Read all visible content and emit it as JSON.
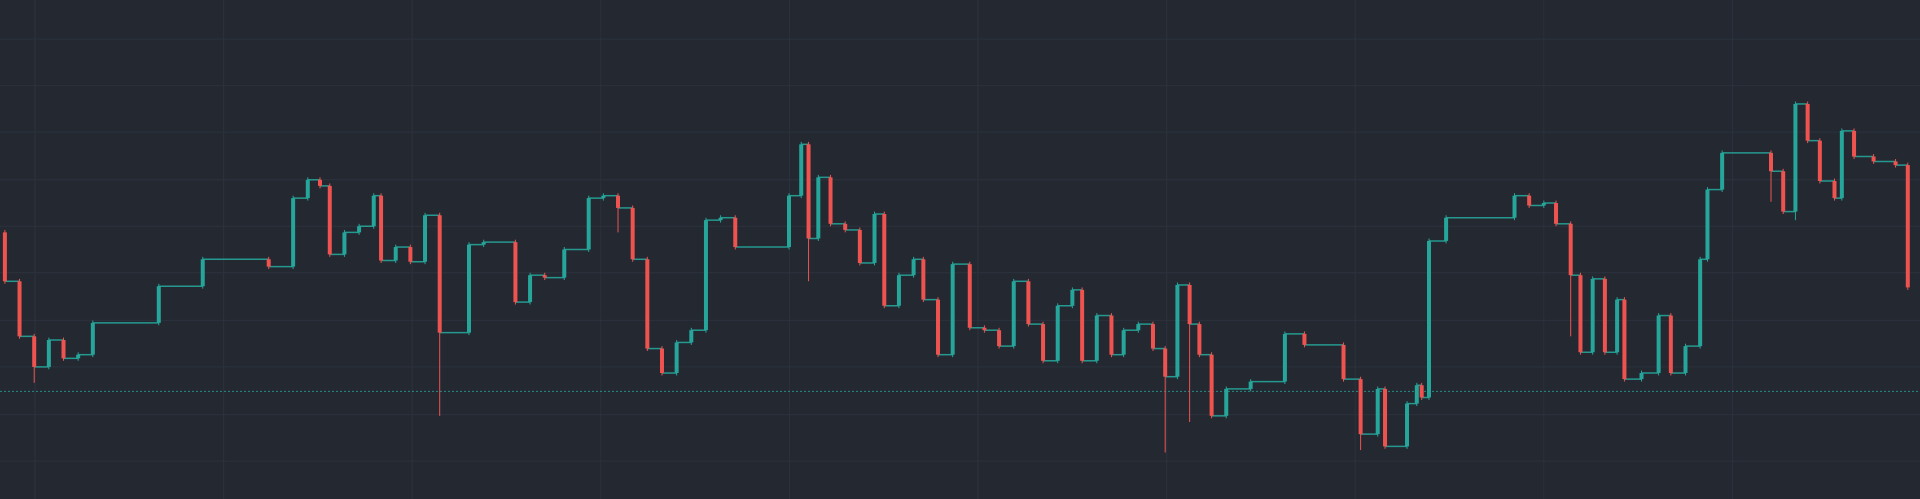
{
  "chart_data": {
    "type": "candlestick",
    "xlim": [
      -4,
      1568
    ],
    "ylim": [
      0,
      408
    ],
    "yticks": [
      31,
      69,
      108,
      146,
      185,
      223,
      261,
      300,
      338,
      376
    ],
    "grid": true,
    "background": "#232831",
    "grid_color": "#2c323d",
    "up_color": "#26a69a",
    "down_color": "#ef5350",
    "price_line": 88,
    "x": [
      0,
      12,
      24,
      36,
      48,
      60,
      72,
      126,
      162,
      216,
      236,
      248,
      258,
      266,
      278,
      290,
      302,
      308,
      320,
      332,
      344,
      356,
      380,
      392,
      418,
      430,
      442,
      458,
      478,
      490,
      502,
      514,
      526,
      538,
      550,
      562,
      574,
      586,
      598,
      642,
      652,
      658,
      666,
      676,
      688,
      700,
      712,
      720,
      732,
      744,
      752,
      764,
      776,
      790,
      802,
      814,
      826,
      838,
      850,
      862,
      874,
      882,
      894,
      906,
      916,
      928,
      940,
      950,
      960,
      970,
      978,
      988,
      1000,
      1020,
      1048,
      1064,
      1096,
      1110,
      1124,
      1130,
      1148,
      1156,
      1160,
      1166,
      1180,
      1236,
      1248,
      1260,
      1270,
      1282,
      1290,
      1300,
      1310,
      1320,
      1326,
      1340,
      1354,
      1364,
      1376,
      1388,
      1394,
      1406,
      1446,
      1456,
      1466,
      1476,
      1486,
      1498,
      1504,
      1514,
      1530,
      1548,
      1558
    ],
    "open": [
      218,
      178,
      133,
      108,
      130,
      115,
      118,
      144,
      174,
      196,
      190,
      246,
      261,
      256,
      200,
      218,
      223,
      248,
      195,
      206,
      194,
      232,
      136,
      208,
      210,
      161,
      183,
      181,
      204,
      246,
      248,
      238,
      196,
      123,
      103,
      128,
      138,
      228,
      230,
      206,
      248,
      290,
      213,
      263,
      225,
      220,
      193,
      233,
      158,
      183,
      196,
      163,
      118,
      192,
      140,
      138,
      125,
      178,
      143,
      113,
      158,
      171,
      113,
      150,
      118,
      138,
      143,
      123,
      100,
      175,
      143,
      118,
      68,
      90,
      96,
      135,
      126,
      98,
      53,
      90,
      43,
      78,
      93,
      83,
      211,
      230,
      248,
      240,
      242,
      225,
      183,
      120,
      180,
      120,
      163,
      98,
      103,
      150,
      103,
      125,
      196,
      253,
      283,
      268,
      235,
      323,
      293,
      260,
      246,
      301,
      280,
      276,
      273
    ],
    "close": [
      178,
      133,
      108,
      130,
      115,
      118,
      144,
      174,
      196,
      190,
      246,
      261,
      256,
      200,
      218,
      223,
      248,
      195,
      206,
      194,
      232,
      136,
      208,
      210,
      161,
      183,
      181,
      204,
      246,
      248,
      238,
      196,
      123,
      103,
      128,
      138,
      228,
      230,
      206,
      248,
      290,
      213,
      263,
      225,
      220,
      193,
      233,
      158,
      183,
      196,
      163,
      118,
      192,
      140,
      138,
      125,
      178,
      143,
      113,
      158,
      171,
      113,
      150,
      118,
      138,
      143,
      123,
      100,
      175,
      143,
      118,
      68,
      90,
      96,
      135,
      126,
      98,
      53,
      90,
      43,
      78,
      93,
      83,
      211,
      230,
      248,
      240,
      242,
      225,
      183,
      120,
      180,
      120,
      163,
      98,
      103,
      150,
      103,
      125,
      196,
      253,
      283,
      268,
      235,
      323,
      293,
      260,
      246,
      301,
      280,
      276,
      273,
      173
    ],
    "high": [
      220,
      180,
      135,
      132,
      132,
      120,
      146,
      176,
      198,
      198,
      248,
      263,
      263,
      258,
      220,
      225,
      250,
      250,
      208,
      208,
      234,
      234,
      210,
      212,
      212,
      185,
      185,
      206,
      248,
      250,
      250,
      240,
      198,
      125,
      130,
      140,
      230,
      232,
      232,
      250,
      292,
      292,
      265,
      265,
      227,
      222,
      235,
      235,
      185,
      198,
      198,
      165,
      194,
      194,
      142,
      140,
      180,
      180,
      145,
      160,
      173,
      173,
      152,
      152,
      140,
      145,
      145,
      125,
      177,
      177,
      145,
      120,
      92,
      98,
      137,
      137,
      128,
      100,
      92,
      92,
      80,
      95,
      95,
      213,
      232,
      250,
      250,
      244,
      244,
      227,
      185,
      182,
      182,
      165,
      165,
      105,
      152,
      152,
      127,
      198,
      255,
      285,
      285,
      270,
      325,
      325,
      295,
      262,
      303,
      303,
      282,
      278,
      275
    ],
    "low": [
      176,
      131,
      95,
      106,
      113,
      113,
      116,
      142,
      172,
      188,
      188,
      244,
      254,
      198,
      198,
      216,
      221,
      193,
      193,
      192,
      192,
      68,
      134,
      206,
      159,
      159,
      179,
      179,
      202,
      244,
      218,
      194,
      121,
      101,
      101,
      126,
      136,
      226,
      204,
      204,
      246,
      178,
      211,
      223,
      218,
      191,
      191,
      156,
      156,
      181,
      161,
      116,
      116,
      138,
      136,
      123,
      123,
      141,
      111,
      111,
      156,
      111,
      111,
      116,
      116,
      136,
      121,
      38,
      98,
      63,
      116,
      66,
      66,
      88,
      94,
      124,
      96,
      40,
      51,
      41,
      41,
      76,
      81,
      81,
      209,
      228,
      238,
      238,
      223,
      133,
      118,
      118,
      118,
      118,
      96,
      96,
      101,
      101,
      101,
      123,
      194,
      251,
      243,
      233,
      228,
      291,
      258,
      244,
      244,
      278,
      274,
      271,
      171
    ]
  }
}
